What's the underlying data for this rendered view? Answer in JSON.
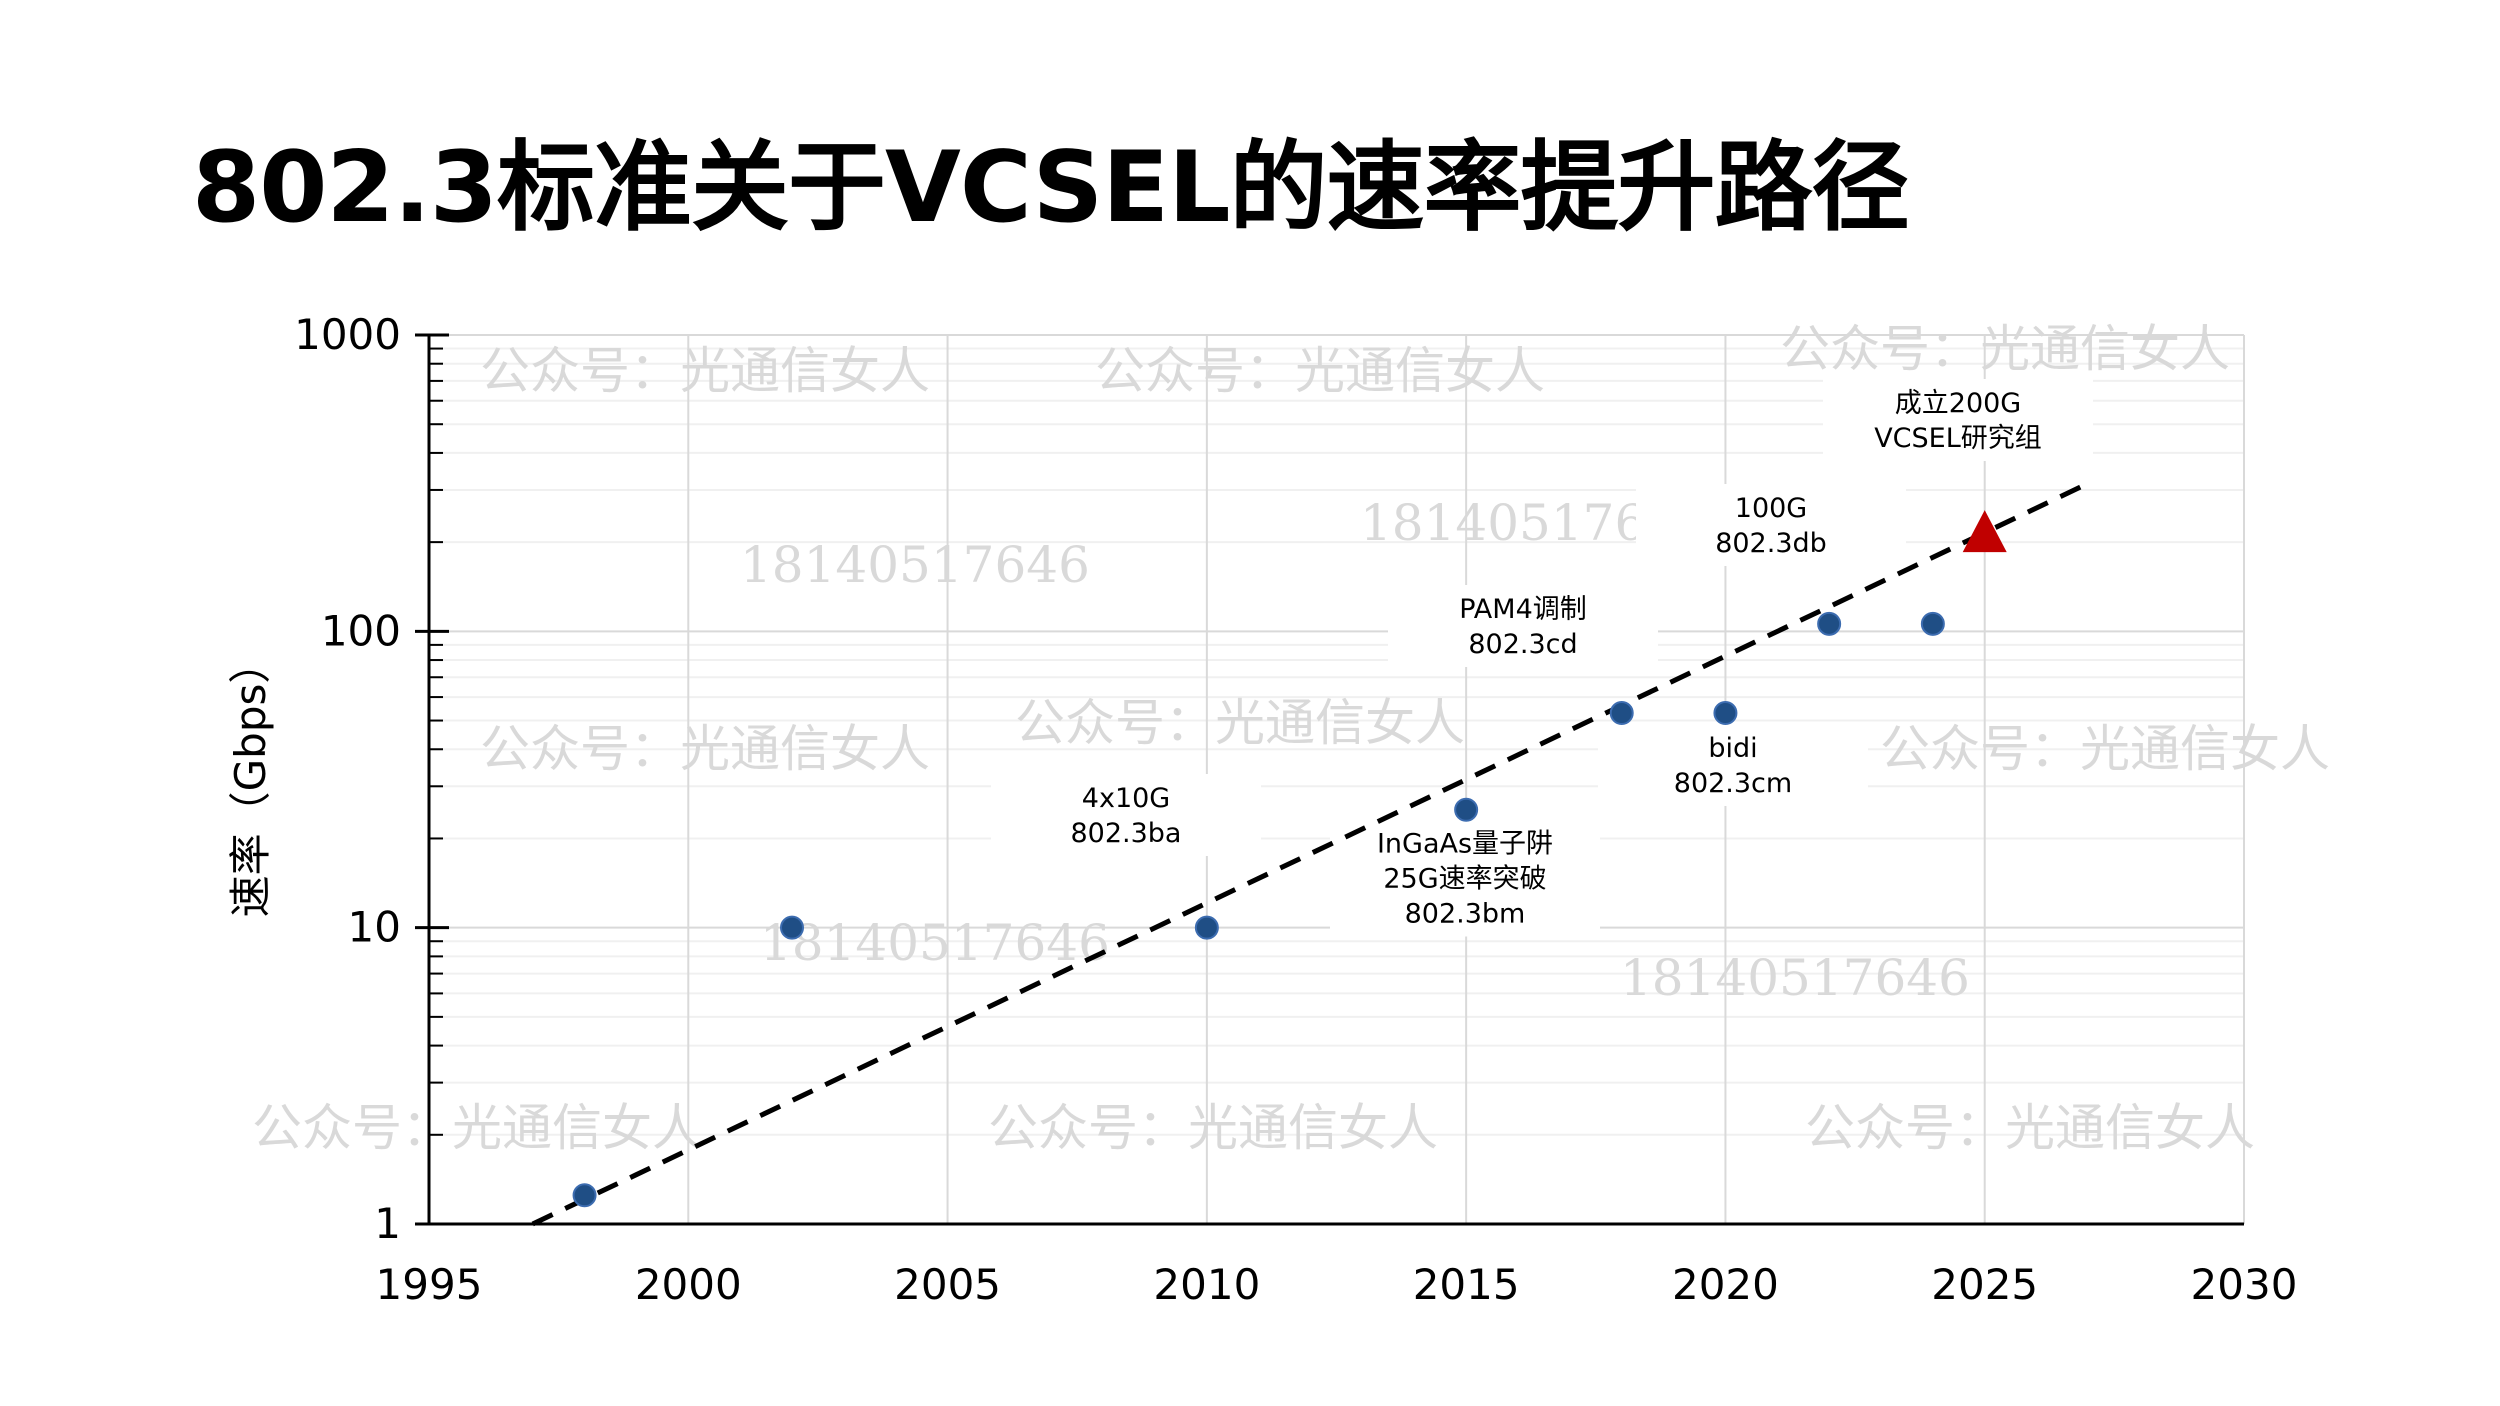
{
  "page": {
    "title": "802.3标准关于VCSEL的速率提升路径"
  },
  "watermarks": {
    "account": "公众号：光通信女人",
    "phone": "18140517646"
  },
  "chart_data": {
    "type": "scatter",
    "title": "802.3标准关于VCSEL的速率提升路径",
    "xlabel": "",
    "ylabel": "速率（Gbps）",
    "xlim": [
      1995,
      2030
    ],
    "ylim": [
      1,
      1000
    ],
    "yscale": "log",
    "grid": true,
    "x_ticks": [
      "1995",
      "2000",
      "2005",
      "2010",
      "2015",
      "2020",
      "2025",
      "2030"
    ],
    "y_ticks": [
      "1",
      "10",
      "100",
      "1000"
    ],
    "series": [
      {
        "marker": "circle",
        "color": "#1f4e85",
        "points": [
          {
            "x": 1998,
            "y": 1.25
          },
          {
            "x": 2002,
            "y": 10
          },
          {
            "x": 2010,
            "y": 10
          },
          {
            "x": 2015,
            "y": 25
          },
          {
            "x": 2018,
            "y": 53
          },
          {
            "x": 2020,
            "y": 53
          },
          {
            "x": 2022,
            "y": 106
          },
          {
            "x": 2024,
            "y": 106
          }
        ]
      },
      {
        "marker": "triangle",
        "color": "#c00000",
        "points": [
          {
            "x": 2025,
            "y": 200
          }
        ]
      }
    ],
    "trendline": {
      "style": "dashed",
      "color": "#000000",
      "from": {
        "x": 1997,
        "y": 1
      },
      "to": {
        "x": 2027,
        "y": 316
      }
    },
    "annotations": [
      {
        "lines": [
          "4x10G",
          "802.3ba"
        ]
      },
      {
        "lines": [
          "InGaAs量子阱",
          "25G速率突破",
          "802.3bm"
        ]
      },
      {
        "lines": [
          "PAM4调制",
          "802.3cd"
        ]
      },
      {
        "lines": [
          "bidi",
          "802.3cm"
        ]
      },
      {
        "lines": [
          "100G",
          "802.3db"
        ]
      },
      {
        "lines": [
          "成立200G",
          "VCSEL研究组"
        ]
      }
    ]
  }
}
